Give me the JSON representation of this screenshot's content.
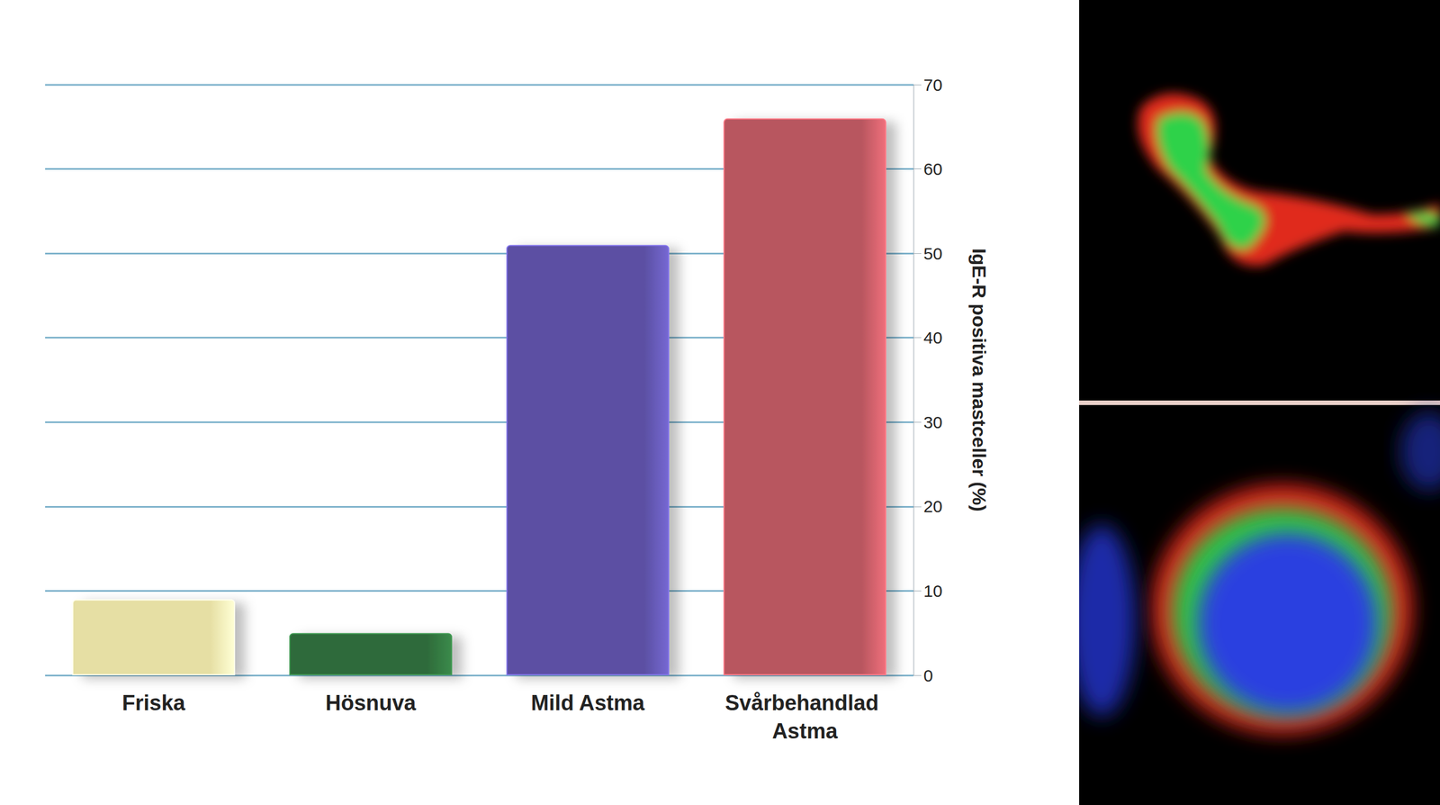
{
  "chart_data": {
    "type": "bar",
    "categories": [
      "Friska",
      "Hösnuva",
      "Mild Astma",
      "Svårbehandlad Astma"
    ],
    "values": [
      9,
      5,
      51,
      66
    ],
    "colors": [
      "#e6dfa4",
      "#2e6b3a",
      "#5b50a3",
      "#b8565f"
    ],
    "y_label": "IgE-R positiva mastceller (%)",
    "ylim": [
      0,
      70
    ],
    "yticks": [
      0,
      10,
      20,
      30,
      40,
      50,
      60,
      70
    ],
    "grid": true
  }
}
